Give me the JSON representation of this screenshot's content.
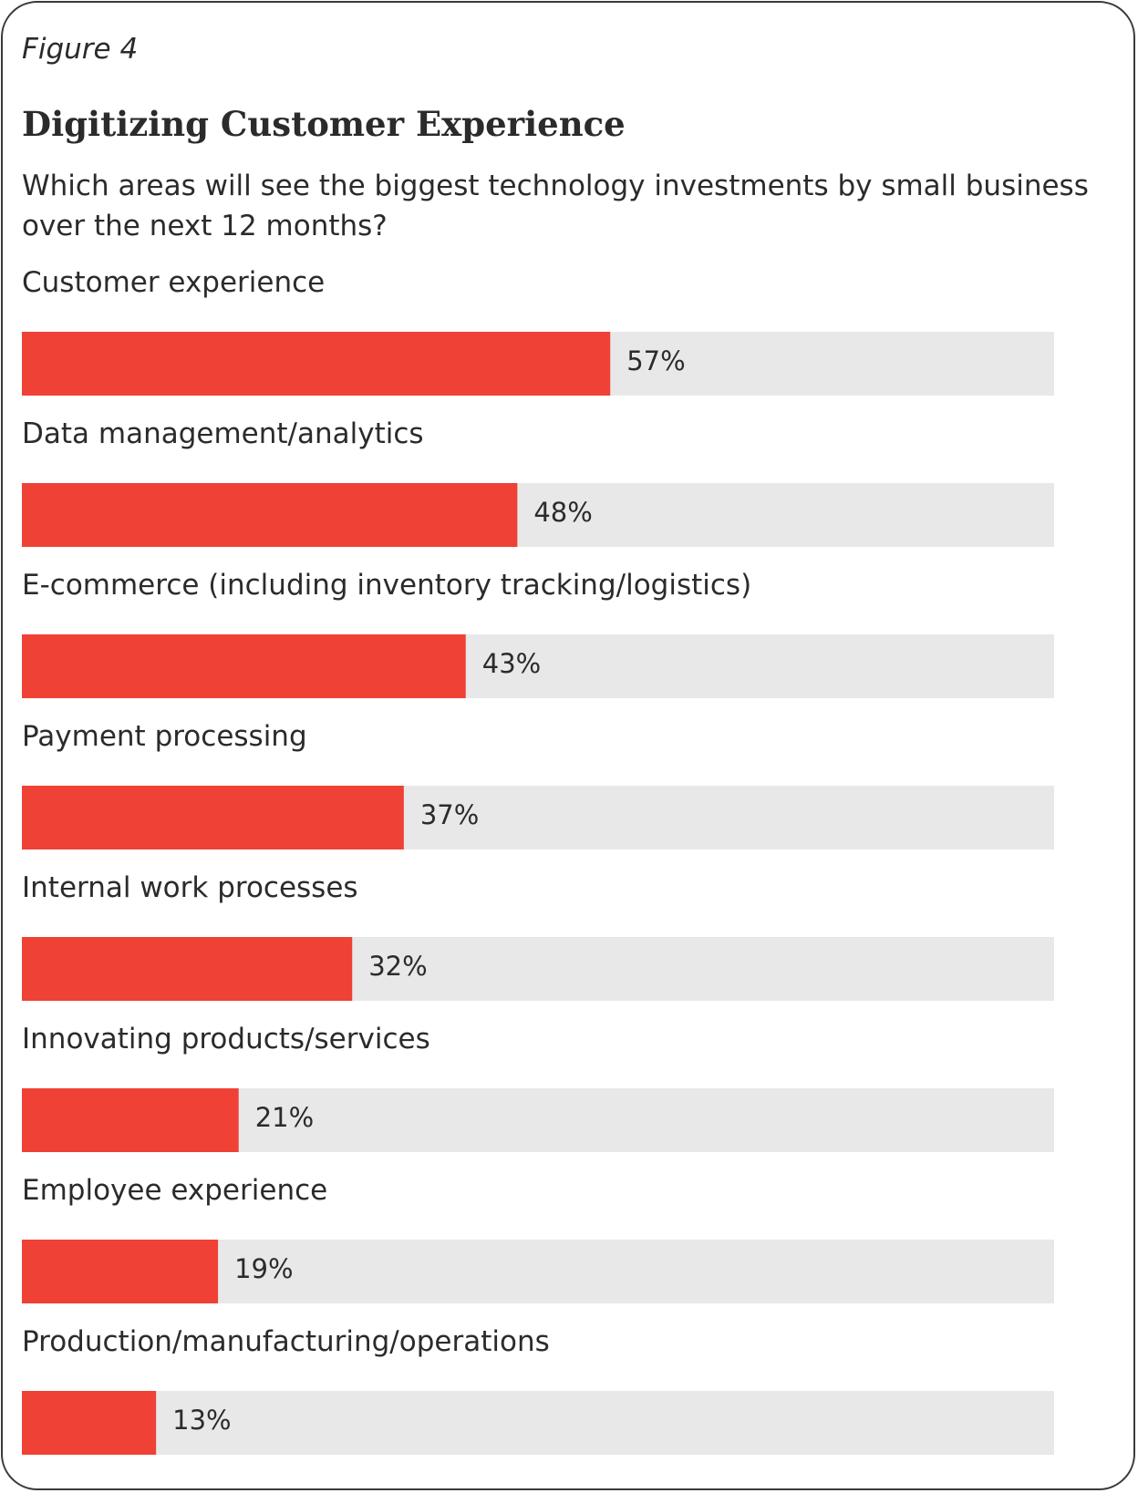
{
  "figure_label": "Figure 4",
  "colors": {
    "bar": "#ef4136",
    "track": "#e8e8e8",
    "text": "#2b2b2b"
  },
  "chart_data": {
    "type": "bar",
    "orientation": "horizontal",
    "title": "Digitizing Customer Experience",
    "subtitle": "Which areas will see the biggest technology investments by small business over the next 12 months?",
    "xlim": [
      0,
      100
    ],
    "unit": "%",
    "grid": false,
    "categories": [
      "Customer experience",
      "Data management/analytics",
      "E-commerce (including inventory tracking/logistics)",
      "Payment processing",
      "Internal work processes",
      "Innovating products/services",
      "Employee experience",
      "Production/manufacturing/operations"
    ],
    "values": [
      57,
      48,
      43,
      37,
      32,
      21,
      19,
      13
    ],
    "value_labels": [
      "57%",
      "48%",
      "43%",
      "37%",
      "32%",
      "21%",
      "19%",
      "13%"
    ]
  }
}
